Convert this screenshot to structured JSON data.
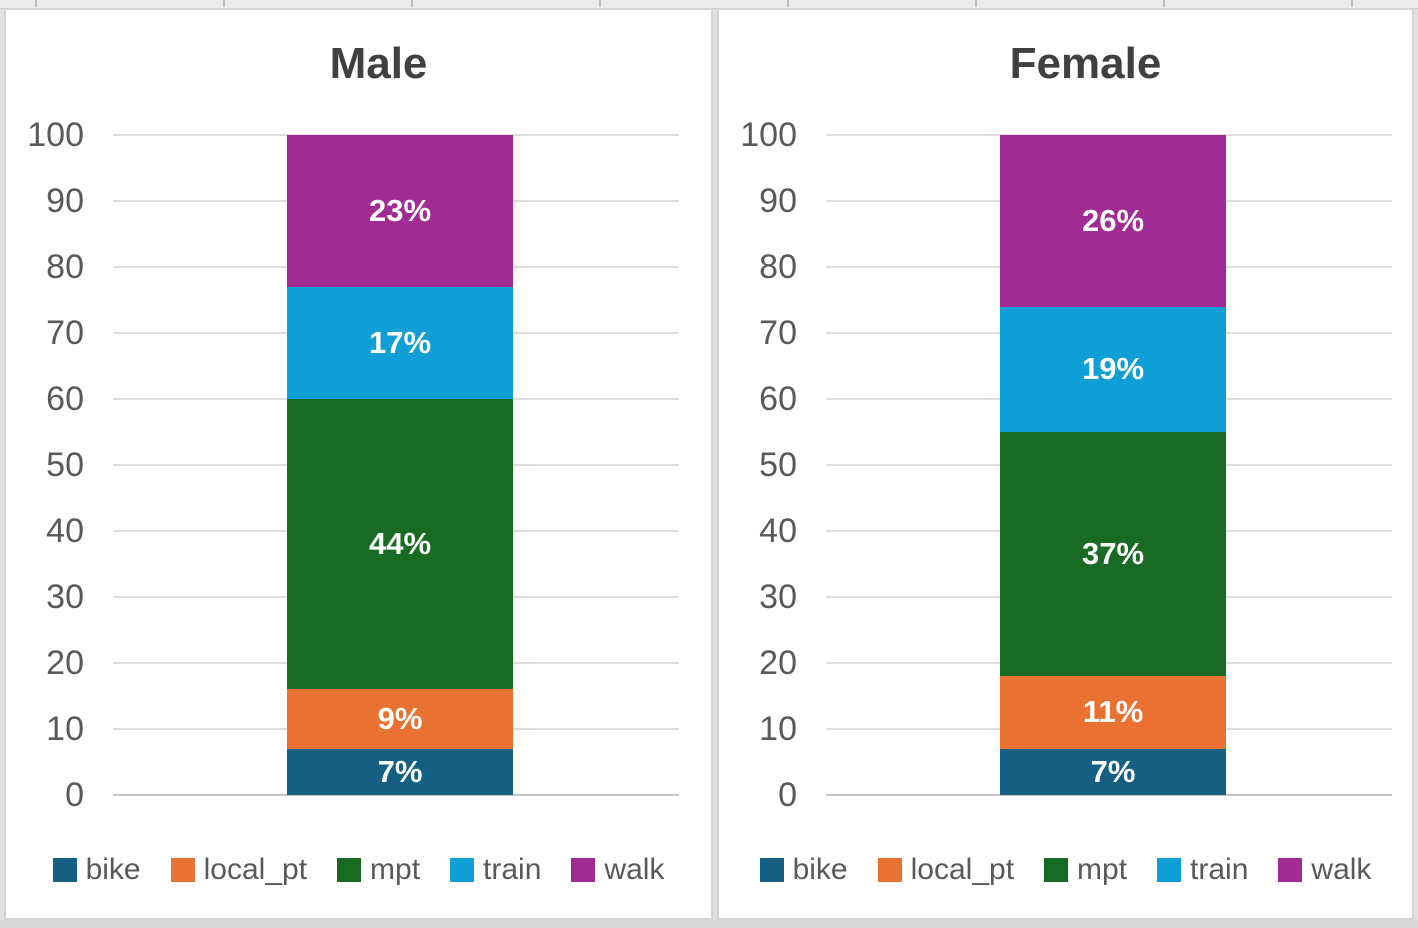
{
  "page": {
    "background_color": "#E2E1E1",
    "panel_border_color": "#D5D3D3",
    "gridline_color": "#DEDDDD",
    "axis_text_color": "#595959",
    "title_text_color": "#404040",
    "data_label_color": "#FFFFFF"
  },
  "chart_data": [
    {
      "type": "bar",
      "stacked": true,
      "title": "Male",
      "categories": [
        "Male"
      ],
      "series": [
        {
          "name": "bike",
          "values": [
            7
          ],
          "label": "7%",
          "color": "#156082"
        },
        {
          "name": "local_pt",
          "values": [
            9
          ],
          "label": "9%",
          "color": "#E97132"
        },
        {
          "name": "mpt",
          "values": [
            44
          ],
          "label": "44%",
          "color": "#196B24"
        },
        {
          "name": "train",
          "values": [
            17
          ],
          "label": "17%",
          "color": "#0F9ED5"
        },
        {
          "name": "walk",
          "values": [
            23
          ],
          "label": "23%",
          "color": "#A02B93"
        }
      ],
      "ylim": [
        0,
        100
      ],
      "ytick_step": 10,
      "yticks": [
        "0",
        "10",
        "20",
        "30",
        "40",
        "50",
        "60",
        "70",
        "80",
        "90",
        "100"
      ],
      "grid": true,
      "legend_position": "bottom"
    },
    {
      "type": "bar",
      "stacked": true,
      "title": "Female",
      "categories": [
        "Female"
      ],
      "series": [
        {
          "name": "bike",
          "values": [
            7
          ],
          "label": "7%",
          "color": "#156082"
        },
        {
          "name": "local_pt",
          "values": [
            11
          ],
          "label": "11%",
          "color": "#E97132"
        },
        {
          "name": "mpt",
          "values": [
            37
          ],
          "label": "37%",
          "color": "#196B24"
        },
        {
          "name": "train",
          "values": [
            19
          ],
          "label": "19%",
          "color": "#0F9ED5"
        },
        {
          "name": "walk",
          "values": [
            26
          ],
          "label": "26%",
          "color": "#A02B93"
        }
      ],
      "ylim": [
        0,
        100
      ],
      "ytick_step": 10,
      "yticks": [
        "0",
        "10",
        "20",
        "30",
        "40",
        "50",
        "60",
        "70",
        "80",
        "90",
        "100"
      ],
      "grid": true,
      "legend_position": "bottom"
    }
  ]
}
